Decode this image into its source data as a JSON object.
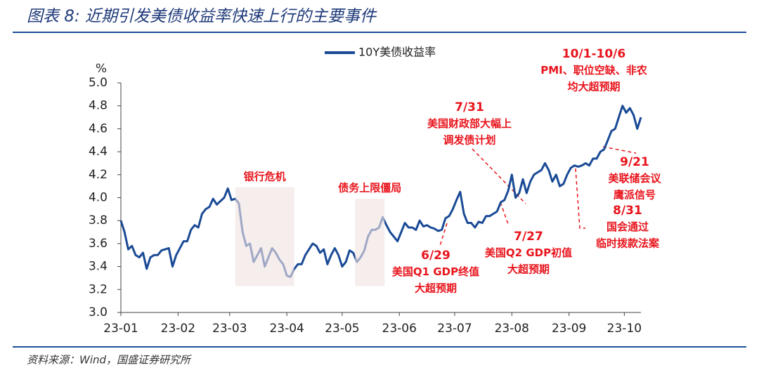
{
  "chart_data": {
    "type": "line",
    "title": "图表 8:  近期引发美债收益率快速上行的主要事件",
    "source": "资料来源：Wind，国盛证券研究所",
    "y_label": "%",
    "xlim": [
      0,
      282
    ],
    "xticks": [
      {
        "value": 0,
        "label": "23-01"
      },
      {
        "value": 31,
        "label": "23-02"
      },
      {
        "value": 59,
        "label": "23-03"
      },
      {
        "value": 90,
        "label": "23-04"
      },
      {
        "value": 120,
        "label": "23-05"
      },
      {
        "value": 151,
        "label": "23-06"
      },
      {
        "value": 181,
        "label": "23-07"
      },
      {
        "value": 212,
        "label": "23-08"
      },
      {
        "value": 243,
        "label": "23-09"
      },
      {
        "value": 273,
        "label": "23-10"
      }
    ],
    "ylim": [
      3.0,
      5.0
    ],
    "yticks": [
      {
        "value": 3.0,
        "label": "3.0"
      },
      3.2,
      3.4,
      3.6,
      3.8,
      {
        "value": 4.0,
        "label": "4.0"
      },
      4.2,
      4.4,
      4.6,
      4.8,
      {
        "value": 5.0,
        "label": "5.0"
      }
    ],
    "x": [
      0,
      2,
      4,
      6,
      8,
      10,
      12,
      14,
      16,
      18,
      20,
      22,
      24,
      26,
      28,
      30,
      32,
      34,
      36,
      38,
      40,
      42,
      44,
      46,
      48,
      50,
      52,
      54,
      56,
      58,
      60,
      62,
      64,
      66,
      68,
      70,
      72,
      74,
      76,
      78,
      80,
      82,
      84,
      86,
      88,
      90,
      92,
      94,
      96,
      98,
      100,
      102,
      104,
      106,
      108,
      110,
      112,
      114,
      116,
      118,
      120,
      122,
      124,
      126,
      128,
      130,
      132,
      134,
      136,
      138,
      140,
      142,
      144,
      146,
      148,
      150,
      152,
      154,
      156,
      158,
      160,
      162,
      164,
      166,
      168,
      170,
      172,
      174,
      176,
      178,
      180,
      182,
      184,
      186,
      188,
      190,
      192,
      194,
      196,
      198,
      200,
      202,
      204,
      206,
      208,
      210,
      212,
      214,
      216,
      218,
      220,
      222,
      224,
      226,
      228,
      230,
      232,
      234,
      236,
      238,
      240,
      242,
      244,
      246,
      248,
      250,
      252,
      254,
      256,
      258,
      260,
      262,
      264,
      266,
      268,
      270,
      272,
      274,
      276,
      278,
      280,
      282
    ],
    "series": [
      {
        "name": "10Y美债收益率",
        "color": "#1a4a96",
        "values": [
          3.8,
          3.7,
          3.55,
          3.58,
          3.5,
          3.48,
          3.52,
          3.38,
          3.48,
          3.5,
          3.5,
          3.54,
          3.55,
          3.56,
          3.4,
          3.5,
          3.56,
          3.62,
          3.62,
          3.72,
          3.76,
          3.74,
          3.86,
          3.9,
          3.92,
          3.99,
          3.94,
          3.97,
          4.0,
          4.08,
          3.98,
          3.99,
          3.95,
          3.7,
          3.58,
          3.6,
          3.44,
          3.5,
          3.56,
          3.4,
          3.48,
          3.56,
          3.52,
          3.46,
          3.42,
          3.32,
          3.31,
          3.38,
          3.42,
          3.42,
          3.5,
          3.55,
          3.6,
          3.58,
          3.52,
          3.55,
          3.42,
          3.5,
          3.56,
          3.5,
          3.4,
          3.44,
          3.54,
          3.52,
          3.44,
          3.48,
          3.54,
          3.66,
          3.72,
          3.72,
          3.74,
          3.83,
          3.76,
          3.7,
          3.66,
          3.62,
          3.7,
          3.78,
          3.74,
          3.74,
          3.72,
          3.8,
          3.75,
          3.76,
          3.74,
          3.73,
          3.71,
          3.72,
          3.82,
          3.84,
          3.9,
          3.98,
          4.05,
          3.86,
          3.78,
          3.78,
          3.74,
          3.79,
          3.78,
          3.84,
          3.84,
          3.86,
          3.88,
          3.96,
          3.98,
          4.06,
          4.2,
          4.0,
          4.04,
          4.16,
          4.04,
          4.14,
          4.2,
          4.22,
          4.24,
          4.3,
          4.24,
          4.14,
          4.2,
          4.1,
          4.12,
          4.2,
          4.26,
          4.28,
          4.27,
          4.28,
          4.3,
          4.28,
          4.34,
          4.34,
          4.4,
          4.42,
          4.5,
          4.58,
          4.6,
          4.7,
          4.8,
          4.74,
          4.78,
          4.72,
          4.6,
          4.7
        ]
      }
    ],
    "shaded_regions": [
      {
        "label": "银行危机",
        "x": [
          62,
          94
        ],
        "y": [
          3.23,
          4.09
        ]
      },
      {
        "label": "债务上限僵局",
        "x": [
          127,
          143
        ],
        "y": [
          3.23,
          3.99
        ]
      }
    ],
    "annotations": [
      {
        "lines": [
          "10/1-10/6",
          "PMI、职位空缺、非农",
          "均大超预期"
        ]
      },
      {
        "lines": [
          "7/31",
          "美国财政部大幅上",
          "调发债计划"
        ]
      },
      {
        "lines": [
          "9/21",
          "美联储会议",
          "鹰派信号"
        ]
      },
      {
        "lines": [
          "8/31",
          "国会通过",
          "临时拨款法案"
        ]
      },
      {
        "lines": [
          "7/27",
          "美国Q2 GDP初值",
          "大超预期"
        ]
      },
      {
        "lines": [
          "6/29",
          "美国Q1 GDP终值",
          "大超预期"
        ]
      }
    ]
  }
}
